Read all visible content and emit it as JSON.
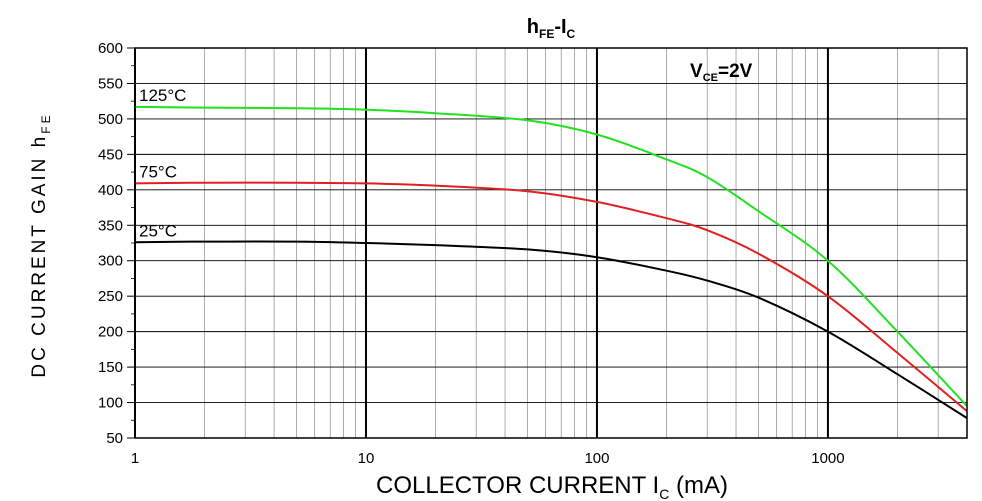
{
  "chart_data": {
    "type": "line",
    "title": {
      "main": "h",
      "main_sub": "FE",
      "sep": "-I",
      "sep_sub": "C"
    },
    "condition": {
      "main": "V",
      "sub": "CE",
      "rest": "=2V"
    },
    "xlabel": {
      "main": "COLLECTOR CURRENT I",
      "sub": "C",
      "rest": " (mA)"
    },
    "ylabel": {
      "main": "DC CURRENT GAIN h",
      "sub": "FE"
    },
    "x_scale": "log",
    "xlim": [
      1,
      4000
    ],
    "ylim": [
      50,
      600
    ],
    "x_ticks": [
      1,
      10,
      100,
      1000
    ],
    "x_tick_labels": [
      "1",
      "10",
      "100",
      "1000"
    ],
    "y_ticks": [
      50,
      100,
      150,
      200,
      250,
      300,
      350,
      400,
      450,
      500,
      550,
      600
    ],
    "y_tick_labels": [
      "50",
      "100",
      "150",
      "200",
      "250",
      "300",
      "350",
      "400",
      "450",
      "500",
      "550",
      "600"
    ],
    "grid": true,
    "series": [
      {
        "name": "125°C",
        "color": "#22e022",
        "x": [
          1,
          2,
          5,
          10,
          20,
          50,
          100,
          200,
          300,
          500,
          1000,
          2000,
          4000
        ],
        "y": [
          517,
          516,
          515,
          513,
          508,
          498,
          478,
          443,
          418,
          370,
          300,
          200,
          95
        ]
      },
      {
        "name": "75°C",
        "color": "#e02020",
        "x": [
          1,
          2,
          5,
          10,
          20,
          50,
          100,
          200,
          300,
          500,
          1000,
          2000,
          4000
        ],
        "y": [
          409,
          410,
          410,
          409,
          406,
          398,
          383,
          360,
          343,
          310,
          250,
          170,
          88
        ]
      },
      {
        "name": "25°C",
        "color": "#000000",
        "x": [
          1,
          2,
          5,
          10,
          20,
          50,
          100,
          200,
          300,
          500,
          1000,
          2000,
          4000
        ],
        "y": [
          326,
          327,
          327,
          325,
          322,
          316,
          305,
          286,
          272,
          248,
          200,
          140,
          78
        ]
      }
    ]
  }
}
